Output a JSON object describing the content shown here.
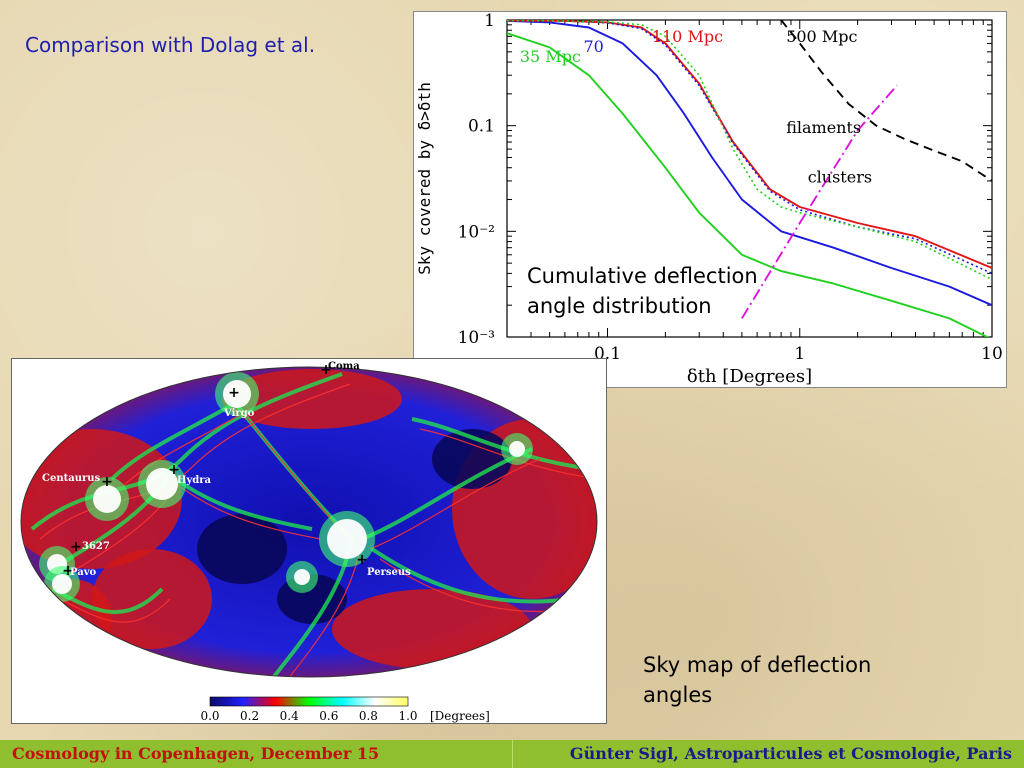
{
  "slide": {
    "title": "Comparison with Dolag et al.",
    "caption_chart_line1": "Cumulative deflection",
    "caption_chart_line2": "angle distribution",
    "caption_map_line1": "Sky map of deflection",
    "caption_map_line2": "angles"
  },
  "footer": {
    "left": "Cosmology in Copenhagen, December 15",
    "right": "Günter Sigl, Astroparticules et Cosmologie, Paris",
    "background": "#8fbe2e"
  },
  "chart_data": [
    {
      "type": "line",
      "xlabel": "δth [Degrees]",
      "ylabel": "Sky covered by δ>δth",
      "x_scale": "log",
      "y_scale": "log",
      "xlim": [
        0.03,
        10
      ],
      "ylim": [
        0.001,
        1
      ],
      "x_ticks": [
        {
          "v": 0.1,
          "label": "0.1"
        },
        {
          "v": 1,
          "label": "1"
        },
        {
          "v": 10,
          "label": "10"
        }
      ],
      "y_ticks": [
        {
          "v": 1,
          "label": "1"
        },
        {
          "v": 0.1,
          "label": "0.1"
        },
        {
          "v": 0.01,
          "label": "10⁻²"
        },
        {
          "v": 0.001,
          "label": "10⁻³"
        }
      ],
      "series": [
        {
          "name": "35 Mpc",
          "color": "#1fd01f",
          "dash": "solid",
          "x": [
            0.03,
            0.05,
            0.08,
            0.12,
            0.2,
            0.3,
            0.5,
            0.8,
            1.5,
            3,
            6,
            10
          ],
          "y": [
            0.75,
            0.55,
            0.3,
            0.13,
            0.04,
            0.015,
            0.006,
            0.0042,
            0.0032,
            0.0022,
            0.0015,
            0.00095
          ]
        },
        {
          "name": "70",
          "color": "#1a1ae0",
          "dash": "solid",
          "x": [
            0.03,
            0.05,
            0.08,
            0.12,
            0.18,
            0.25,
            0.35,
            0.5,
            0.8,
            1.5,
            3,
            6,
            10
          ],
          "y": [
            0.98,
            0.95,
            0.85,
            0.6,
            0.3,
            0.13,
            0.05,
            0.02,
            0.01,
            0.007,
            0.0045,
            0.003,
            0.002
          ]
        },
        {
          "name": "110 Mpc",
          "color": "#e01515",
          "dash": "solid",
          "x": [
            0.03,
            0.06,
            0.1,
            0.15,
            0.2,
            0.3,
            0.45,
            0.7,
            1,
            2,
            4,
            10
          ],
          "y": [
            0.99,
            0.98,
            0.95,
            0.85,
            0.6,
            0.25,
            0.07,
            0.025,
            0.017,
            0.012,
            0.009,
            0.0045
          ]
        },
        {
          "name": "",
          "color": "#1a1ae0",
          "dash": "dotted",
          "x": [
            0.03,
            0.06,
            0.1,
            0.15,
            0.2,
            0.3,
            0.45,
            0.7,
            1,
            2,
            4,
            10
          ],
          "y": [
            0.99,
            0.98,
            0.94,
            0.83,
            0.58,
            0.24,
            0.068,
            0.024,
            0.016,
            0.011,
            0.0085,
            0.004
          ]
        },
        {
          "name": "",
          "color": "#1fd01f",
          "dash": "dotted",
          "x": [
            0.03,
            0.06,
            0.1,
            0.15,
            0.2,
            0.3,
            0.45,
            0.6,
            0.8,
            1,
            2,
            4,
            10
          ],
          "y": [
            0.99,
            0.98,
            0.96,
            0.9,
            0.7,
            0.3,
            0.06,
            0.025,
            0.017,
            0.015,
            0.011,
            0.008,
            0.0035
          ]
        },
        {
          "name": "500 Mpc",
          "color": "#000000",
          "dash": "dashed",
          "x": [
            0.8,
            1,
            1.3,
            1.8,
            2.5,
            3.5,
            5,
            7,
            10
          ],
          "y": [
            1.0,
            0.6,
            0.32,
            0.16,
            0.1,
            0.075,
            0.058,
            0.046,
            0.03
          ]
        },
        {
          "name": "",
          "color": "#e010e0",
          "dash": "dashdot",
          "x": [
            0.5,
            1,
            2,
            3.2
          ],
          "y": [
            0.0015,
            0.012,
            0.09,
            0.24
          ]
        }
      ],
      "annotations": [
        {
          "text": "35 Mpc",
          "color": "#1fd01f",
          "x": 0.035,
          "y": 0.4
        },
        {
          "text": "70",
          "color": "#1a1ae0",
          "x": 0.075,
          "y": 0.5
        },
        {
          "text": "110 Mpc",
          "color": "#e01515",
          "x": 0.17,
          "y": 0.62
        },
        {
          "text": "500 Mpc",
          "color": "#000000",
          "x": 0.85,
          "y": 0.62
        },
        {
          "text": "filaments",
          "color": "#000000",
          "x": 0.85,
          "y": 0.085
        },
        {
          "text": "clusters",
          "color": "#000000",
          "x": 1.1,
          "y": 0.029
        }
      ]
    },
    {
      "type": "heatmap",
      "colorbar_ticks": [
        "0.0",
        "0.2",
        "0.4",
        "0.6",
        "0.8",
        "1.0"
      ],
      "colorbar_unit": "[Degrees]",
      "colorbar_colors": [
        "#0a0a6a",
        "#2020ff",
        "#ff0000",
        "#00ff00",
        "#00ffff",
        "#ffffff",
        "#ffff60"
      ],
      "labels": [
        "Coma",
        "Virgo",
        "Centaurus",
        "Hydra",
        "3627",
        "Pavo",
        "Perseus"
      ]
    }
  ]
}
